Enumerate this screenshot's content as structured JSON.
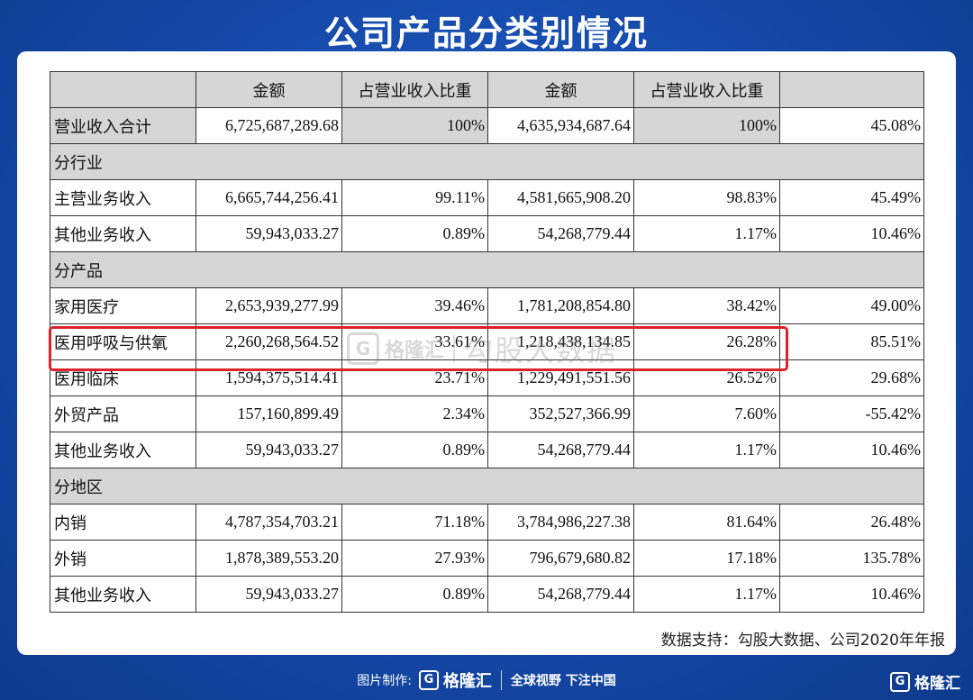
{
  "title": "公司产品分类别情况",
  "table": {
    "header": [
      "",
      "金额",
      "占营业收入比重",
      "金额",
      "占营业收入比重",
      ""
    ],
    "total": {
      "label": "营业收入合计",
      "c1": "6,725,687,289.68",
      "c2": "100%",
      "c3": "4,635,934,687.64",
      "c4": "100%",
      "c5": "45.08%"
    },
    "sec1": "分行业",
    "industry": [
      {
        "label": "主营业务收入",
        "c1": "6,665,744,256.41",
        "c2": "99.11%",
        "c3": "4,581,665,908.20",
        "c4": "98.83%",
        "c5": "45.49%"
      },
      {
        "label": "其他业务收入",
        "c1": "59,943,033.27",
        "c2": "0.89%",
        "c3": "54,268,779.44",
        "c4": "1.17%",
        "c5": "10.46%"
      }
    ],
    "sec2": "分产品",
    "product": [
      {
        "label": "家用医疗",
        "c1": "2,653,939,277.99",
        "c2": "39.46%",
        "c3": "1,781,208,854.80",
        "c4": "38.42%",
        "c5": "49.00%"
      },
      {
        "label": "医用呼吸与供氧",
        "c1": "2,260,268,564.52",
        "c2": "33.61%",
        "c3": "1,218,438,134.85",
        "c4": "26.28%",
        "c5": "85.51%"
      },
      {
        "label": "医用临床",
        "c1": "1,594,375,514.41",
        "c2": "23.71%",
        "c3": "1,229,491,551.56",
        "c4": "26.52%",
        "c5": "29.68%"
      },
      {
        "label": "外贸产品",
        "c1": "157,160,899.49",
        "c2": "2.34%",
        "c3": "352,527,366.99",
        "c4": "7.60%",
        "c5": "-55.42%"
      },
      {
        "label": "其他业务收入",
        "c1": "59,943,033.27",
        "c2": "0.89%",
        "c3": "54,268,779.44",
        "c4": "1.17%",
        "c5": "10.46%"
      }
    ],
    "sec3": "分地区",
    "region": [
      {
        "label": "内销",
        "c1": "4,787,354,703.21",
        "c2": "71.18%",
        "c3": "3,784,986,227.38",
        "c4": "81.64%",
        "c5": "26.48%"
      },
      {
        "label": "外销",
        "c1": "1,878,389,553.20",
        "c2": "27.93%",
        "c3": "796,679,680.82",
        "c4": "17.18%",
        "c5": "135.78%"
      },
      {
        "label": "其他业务收入",
        "c1": "59,943,033.27",
        "c2": "0.89%",
        "c3": "54,268,779.44",
        "c4": "1.17%",
        "c5": "10.46%"
      }
    ]
  },
  "highlight_color": "#e0202a",
  "watermark": {
    "logo": "G",
    "brand": "格隆汇",
    "text": "勾股大数据"
  },
  "source": "数据支持：勾股大数据、公司2020年年报",
  "footer": {
    "made_by": "图片制作:",
    "logo": "G",
    "brand": "格隆汇",
    "slogan": "全球视野 下注中国"
  },
  "corner": {
    "logo": "G",
    "brand": "格隆汇"
  }
}
